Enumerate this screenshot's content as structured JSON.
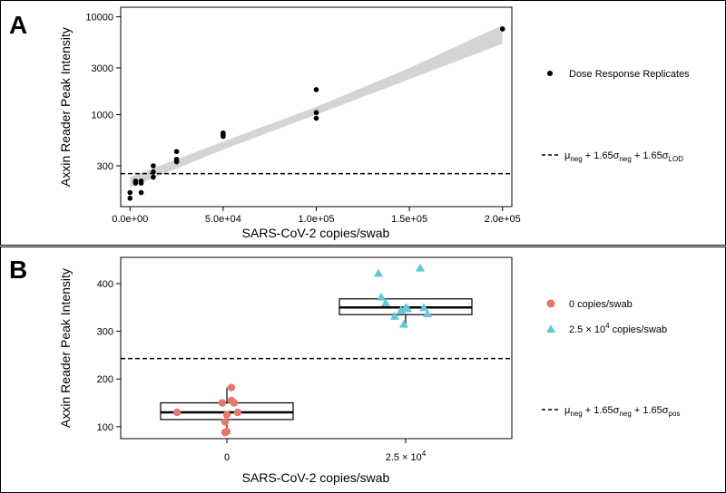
{
  "chart_data": [
    {
      "panel": "A",
      "type": "scatter",
      "y_scale": "log",
      "xlabel": "SARS-CoV-2 copies/swab",
      "ylabel": "Axxin Reader Peak Intensity",
      "xlim": [
        -5000,
        205000
      ],
      "ylim": [
        115,
        12500
      ],
      "x_ticks": [
        {
          "value": 0,
          "label": "0.0e+00"
        },
        {
          "value": 50000,
          "label": "5.0e+04"
        },
        {
          "value": 100000,
          "label": "1.0e+05"
        },
        {
          "value": 150000,
          "label": "1.5e+05"
        },
        {
          "value": 200000,
          "label": "2.0e+05"
        }
      ],
      "y_ticks": [
        {
          "value": 300,
          "label": "300"
        },
        {
          "value": 1000,
          "label": "1000"
        },
        {
          "value": 3000,
          "label": "3000"
        },
        {
          "value": 10000,
          "label": "10000"
        }
      ],
      "points": [
        {
          "x": 0,
          "y": 140
        },
        {
          "x": 0,
          "y": 160
        },
        {
          "x": 3000,
          "y": 200
        },
        {
          "x": 3000,
          "y": 210
        },
        {
          "x": 6000,
          "y": 160
        },
        {
          "x": 6000,
          "y": 200
        },
        {
          "x": 6000,
          "y": 210
        },
        {
          "x": 12500,
          "y": 230
        },
        {
          "x": 12500,
          "y": 260
        },
        {
          "x": 12500,
          "y": 300
        },
        {
          "x": 25000,
          "y": 330
        },
        {
          "x": 25000,
          "y": 350
        },
        {
          "x": 25000,
          "y": 420
        },
        {
          "x": 50000,
          "y": 600
        },
        {
          "x": 50000,
          "y": 620
        },
        {
          "x": 50000,
          "y": 650
        },
        {
          "x": 100000,
          "y": 920
        },
        {
          "x": 100000,
          "y": 1050
        },
        {
          "x": 100000,
          "y": 1800
        },
        {
          "x": 200000,
          "y": 7500
        }
      ],
      "fit_band": [
        {
          "x": 0,
          "lower": 180,
          "upper": 230
        },
        {
          "x": 50000,
          "lower": 440,
          "upper": 530
        },
        {
          "x": 100000,
          "lower": 1000,
          "upper": 1200
        },
        {
          "x": 150000,
          "lower": 2300,
          "upper": 3000
        },
        {
          "x": 200000,
          "lower": 5300,
          "upper": 8200
        }
      ],
      "threshold": 250,
      "legend": {
        "points_label": "Dose Response Replicates",
        "line_label": {
          "base": "μ",
          "sub1": "neg",
          "t1": " + 1.65σ",
          "sub2": "neg",
          "t2": " + 1.65σ",
          "sub3": "LOD"
        }
      }
    },
    {
      "panel": "B",
      "type": "boxplot+jitter",
      "xlabel": "SARS-CoV-2 copies/swab",
      "ylabel": "Axxin Reader Peak Intensity",
      "ylim": [
        75,
        455
      ],
      "y_ticks": [
        100,
        200,
        300,
        400
      ],
      "categories": [
        {
          "label": "0",
          "label_sup": "",
          "label_suffix": ""
        },
        {
          "label": "2.5 × 10",
          "label_sup": "4",
          "label_suffix": ""
        }
      ],
      "groups": [
        {
          "name": "0 copies/swab",
          "color": "#e8766d",
          "marker": "circle",
          "box": {
            "q1": 115,
            "median": 130,
            "q3": 150,
            "whisker_low": 90,
            "whisker_high": 182
          },
          "points": [
            {
              "offset": -0.55,
              "y": 130
            },
            {
              "offset": -0.05,
              "y": 150
            },
            {
              "offset": -0.02,
              "y": 110
            },
            {
              "offset": 0.0,
              "y": 125
            },
            {
              "offset": -0.02,
              "y": 88
            },
            {
              "offset": 0.0,
              "y": 90
            },
            {
              "offset": 0.05,
              "y": 182
            },
            {
              "offset": 0.05,
              "y": 155
            },
            {
              "offset": 0.08,
              "y": 150
            },
            {
              "offset": 0.12,
              "y": 130
            }
          ]
        },
        {
          "name": "2.5 × 10^4 copies/swab",
          "color": "#62c8d6",
          "marker": "triangle",
          "box": {
            "q1": 335,
            "median": 350,
            "q3": 368,
            "whisker_low": 315,
            "whisker_high": 368
          },
          "points": [
            {
              "offset": -0.3,
              "y": 422
            },
            {
              "offset": -0.27,
              "y": 372
            },
            {
              "offset": -0.22,
              "y": 360
            },
            {
              "offset": -0.12,
              "y": 332
            },
            {
              "offset": -0.05,
              "y": 345
            },
            {
              "offset": 0.0,
              "y": 350
            },
            {
              "offset": -0.02,
              "y": 315
            },
            {
              "offset": 0.02,
              "y": 348
            },
            {
              "offset": 0.16,
              "y": 433
            },
            {
              "offset": 0.2,
              "y": 350
            },
            {
              "offset": 0.24,
              "y": 337
            }
          ]
        }
      ],
      "threshold": 243,
      "legend": {
        "g1_label": "0 copies/swab",
        "g2_label_pre": "2.5 × 10",
        "g2_label_sup": "4",
        "g2_label_post": " copies/swab",
        "line_label": {
          "base": "μ",
          "sub1": "neg",
          "t1": " + 1.65σ",
          "sub2": "neg",
          "t2": " + 1.65σ",
          "sub3": "pos"
        }
      }
    }
  ]
}
